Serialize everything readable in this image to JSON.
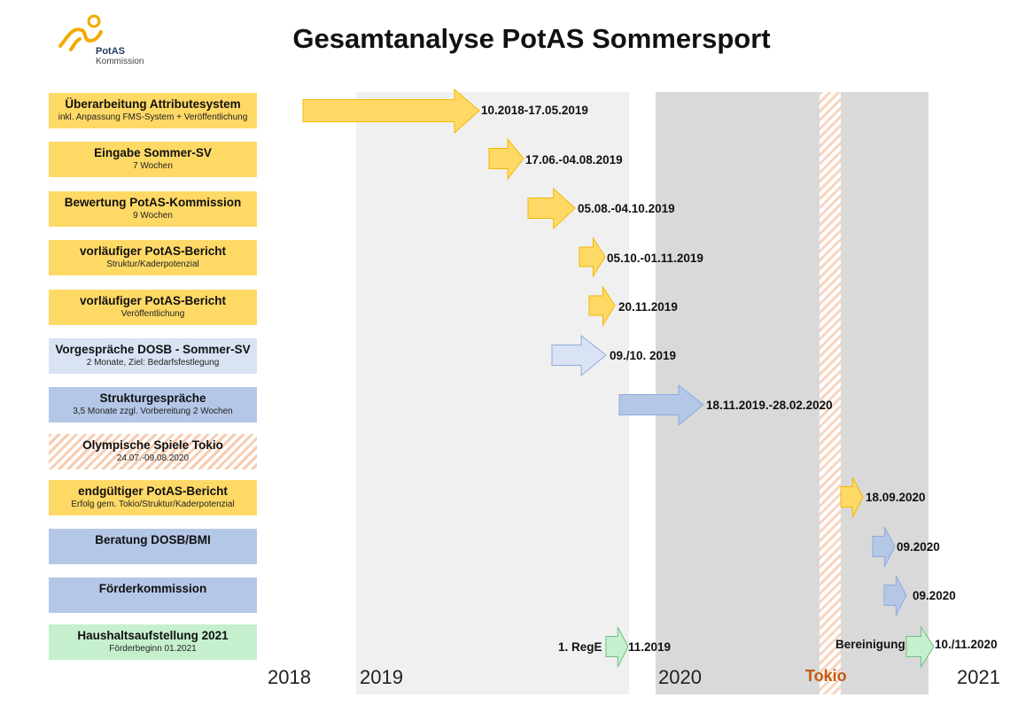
{
  "header": {
    "title": "Gesamtanalyse PotAS Sommersport",
    "logo_line1": "PotAS",
    "logo_line2": "Kommission"
  },
  "colors": {
    "yellow": "#ffd966",
    "yellow_stroke": "#f2b800",
    "light_blue": "#dae3f3",
    "blue": "#b4c7e7",
    "blue_stroke": "#8faadc",
    "green": "#c6efce",
    "green_stroke": "#70c080",
    "year_2019_band": "#f0f0f0",
    "year_2020_band": "#d9d9d9",
    "tokio_accent": "#c55a11"
  },
  "timeline": {
    "years": [
      "2018",
      "2019",
      "2020",
      "2021"
    ],
    "tokio_label": "Tokio"
  },
  "tasks": [
    {
      "title": "Überarbeitung Attributesystem",
      "subtitle": "inkl.  Anpassung FMS-System + Veröffentlichung",
      "color": "yellow",
      "date_label": "10.2018-17.05.2019"
    },
    {
      "title": "Eingabe Sommer-SV",
      "subtitle": "7 Wochen",
      "color": "yellow",
      "date_label": "17.06.-04.08.2019"
    },
    {
      "title": "Bewertung PotAS-Kommission",
      "subtitle": "9 Wochen",
      "color": "yellow",
      "date_label": "05.08.-04.10.2019"
    },
    {
      "title": "vorläufiger PotAS-Bericht",
      "subtitle": "Struktur/Kaderpotenzial",
      "color": "yellow",
      "date_label": "05.10.-01.11.2019"
    },
    {
      "title": "vorläufiger PotAS-Bericht",
      "subtitle": "Veröffentlichung",
      "color": "yellow",
      "date_label": "20.11.2019"
    },
    {
      "title": "Vorgespräche DOSB - Sommer-SV",
      "subtitle": "2 Monate, Ziel: Bedarfsfestlegung",
      "color": "light_blue",
      "date_label": "09./10. 2019"
    },
    {
      "title": "Strukturgespräche",
      "subtitle": "3,5 Monate zzgl. Vorbereitung 2 Wochen",
      "color": "blue",
      "date_label": "18.11.2019.-28.02.2020"
    },
    {
      "title": "Olympische Spiele Tokio",
      "subtitle": "24.07.-09.08.2020",
      "color": "hatch",
      "date_label": ""
    },
    {
      "title": "endgültiger PotAS-Bericht",
      "subtitle": "Erfolg gem. Tokio/Struktur/Kaderpotenzial",
      "color": "yellow",
      "date_label": "18.09.2020"
    },
    {
      "title": "Beratung DOSB/BMI",
      "subtitle": "",
      "color": "blue",
      "date_label": "09.2020"
    },
    {
      "title": "Förderkommission",
      "subtitle": "",
      "color": "blue",
      "date_label": "09.2020"
    },
    {
      "title": "Haushaltsaufstellung 2021",
      "subtitle": "Förderbeginn 01.2021",
      "color": "green",
      "date_label": "11.2019",
      "prefix_label": "1. RegE",
      "extra_prefix_label": "Bereinigung",
      "extra_date_label": "10./11.2020"
    }
  ]
}
